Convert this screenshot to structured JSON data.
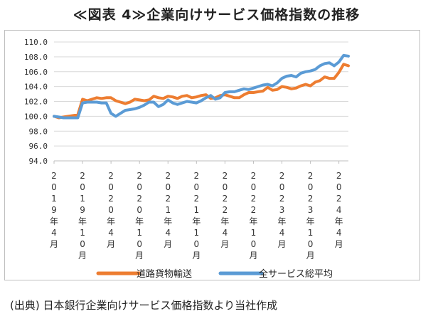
{
  "title": "≪図表 4≫企業向けサービス価格指数の推移",
  "source": "(出典) 日本銀行企業向けサービス価格指数より当社作成",
  "colors": {
    "road": "#ED7D31",
    "all": "#5B9BD5",
    "grid": "#d9d9d9",
    "axis": "#bfbfbf"
  },
  "chart_data": {
    "type": "line",
    "title": "企業向けサービス価格指数の推移",
    "xlabel": "",
    "ylabel": "",
    "ylim": [
      94.0,
      110.0
    ],
    "yticks": [
      "110.0",
      "108.0",
      "106.0",
      "104.0",
      "102.0",
      "100.0",
      "98.0",
      "96.0",
      "94.0"
    ],
    "tick_labels": [
      "2019年4月",
      "2019年10月",
      "2020年4月",
      "2020年10月",
      "2021年4月",
      "2021年10月",
      "2022年4月",
      "2022年10月",
      "2023年4月",
      "2023年10月",
      "2024年4月"
    ],
    "legend_position": "bottom",
    "series": [
      {
        "name": "道路貨物輸送",
        "values": [
          100.0,
          99.8,
          99.9,
          100.0,
          100.1,
          100.2,
          102.3,
          102.1,
          102.3,
          102.5,
          102.4,
          102.5,
          102.5,
          102.1,
          101.9,
          101.7,
          101.9,
          102.3,
          102.2,
          102.1,
          102.2,
          102.7,
          102.5,
          102.4,
          102.7,
          102.6,
          102.4,
          102.7,
          102.8,
          102.5,
          102.6,
          102.8,
          102.9,
          102.4,
          102.5,
          102.8,
          102.9,
          102.7,
          102.5,
          102.5,
          102.9,
          103.2,
          103.2,
          103.3,
          103.4,
          103.9,
          103.5,
          103.6,
          104.0,
          103.9,
          103.7,
          103.8,
          104.1,
          104.3,
          104.1,
          104.6,
          104.8,
          105.3,
          105.1,
          105.1,
          105.9,
          107.0,
          106.8
        ]
      },
      {
        "name": "全サービス総平均",
        "values": [
          100.0,
          99.9,
          99.8,
          99.8,
          99.8,
          99.8,
          101.8,
          101.9,
          101.9,
          101.9,
          101.8,
          101.8,
          100.4,
          100.0,
          100.4,
          100.8,
          100.9,
          101.0,
          101.2,
          101.5,
          101.9,
          101.9,
          101.3,
          101.6,
          102.2,
          101.8,
          101.6,
          101.8,
          102.0,
          101.9,
          101.8,
          102.1,
          102.5,
          102.8,
          102.3,
          102.5,
          103.2,
          103.3,
          103.3,
          103.5,
          103.7,
          103.6,
          103.8,
          104.0,
          104.2,
          104.3,
          104.1,
          104.5,
          105.1,
          105.4,
          105.5,
          105.3,
          105.8,
          106.0,
          106.1,
          106.3,
          106.8,
          107.1,
          107.2,
          106.8,
          107.3,
          108.2,
          108.1
        ]
      }
    ]
  }
}
